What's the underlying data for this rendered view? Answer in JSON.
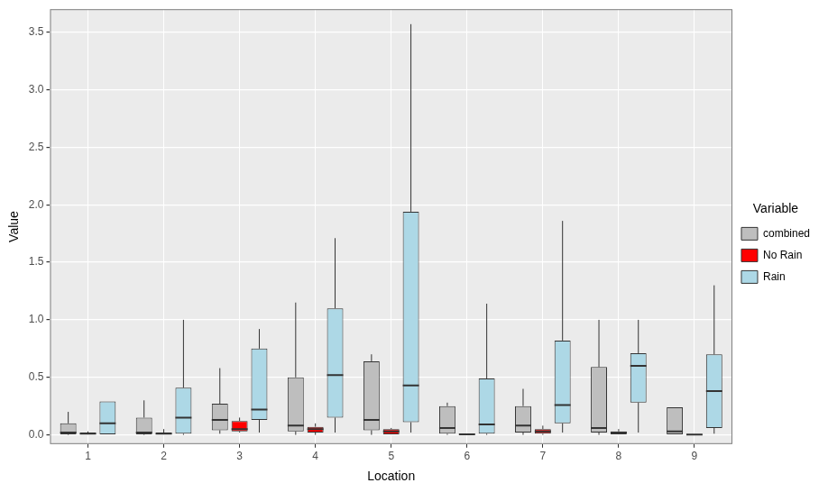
{
  "chart_data": {
    "type": "boxplot",
    "x_label": "Location",
    "y_label": "Value",
    "legend_title": "Variable",
    "legend": "right",
    "grid": true,
    "categories": [
      "1",
      "2",
      "3",
      "4",
      "5",
      "6",
      "7",
      "8",
      "9"
    ],
    "ylim": [
      -0.08,
      3.7
    ],
    "yticks": [
      {
        "value": 0,
        "label": "0.0"
      },
      0.5,
      {
        "value": 1,
        "label": "1.0"
      },
      1.5,
      {
        "value": 2,
        "label": "2.0"
      },
      2.5,
      {
        "value": 3,
        "label": "3.0"
      },
      3.5
    ],
    "series": [
      {
        "name": "combined",
        "color": "#bebebe",
        "values": [
          {
            "min": 0,
            "q1": 0.005,
            "median": 0.02,
            "q3": 0.1,
            "max": 0.2
          },
          {
            "min": 0,
            "q1": 0.005,
            "median": 0.02,
            "q3": 0.15,
            "max": 0.3
          },
          {
            "min": 0.01,
            "q1": 0.04,
            "median": 0.13,
            "q3": 0.27,
            "max": 0.58
          },
          {
            "min": 0,
            "q1": 0.03,
            "median": 0.08,
            "q3": 0.5,
            "max": 1.15
          },
          {
            "min": 0,
            "q1": 0.04,
            "median": 0.13,
            "q3": 0.64,
            "max": 0.7
          },
          {
            "min": 0,
            "q1": 0.01,
            "median": 0.06,
            "q3": 0.25,
            "max": 0.28
          },
          {
            "min": 0,
            "q1": 0.02,
            "median": 0.08,
            "q3": 0.25,
            "max": 0.4
          },
          {
            "min": 0,
            "q1": 0.02,
            "median": 0.06,
            "q3": 0.59,
            "max": 1.0
          },
          {
            "min": 0,
            "q1": 0,
            "median": 0.03,
            "q3": 0.24,
            "max": 0.24
          }
        ]
      },
      {
        "name": "No Rain",
        "color": "#ff0000",
        "values": [
          {
            "min": 0,
            "q1": 0,
            "median": 0.01,
            "q3": 0.02,
            "max": 0.03
          },
          {
            "min": 0,
            "q1": 0,
            "median": 0.01,
            "q3": 0.02,
            "max": 0.05
          },
          {
            "min": 0.02,
            "q1": 0.03,
            "median": 0.05,
            "q3": 0.12,
            "max": 0.15
          },
          {
            "min": 0,
            "q1": 0.02,
            "median": 0.05,
            "q3": 0.07,
            "max": 0.1
          },
          {
            "min": 0,
            "q1": 0,
            "median": 0.03,
            "q3": 0.05,
            "max": 0.06
          },
          {
            "min": 0,
            "q1": 0,
            "median": 0.005,
            "q3": 0.01,
            "max": 0.01
          },
          {
            "min": 0,
            "q1": 0.01,
            "median": 0.03,
            "q3": 0.05,
            "max": 0.08
          },
          {
            "min": 0,
            "q1": 0,
            "median": 0.02,
            "q3": 0.03,
            "max": 0.05
          },
          {
            "min": 0,
            "q1": 0,
            "median": 0.003,
            "q3": 0.005,
            "max": 0.005
          }
        ]
      },
      {
        "name": "Rain",
        "color": "#add8e6",
        "values": [
          {
            "min": 0,
            "q1": 0,
            "median": 0.1,
            "q3": 0.29,
            "max": 0.29
          },
          {
            "min": 0,
            "q1": 0.01,
            "median": 0.15,
            "q3": 0.41,
            "max": 1.0
          },
          {
            "min": 0.02,
            "q1": 0.13,
            "median": 0.22,
            "q3": 0.75,
            "max": 0.92
          },
          {
            "min": 0.02,
            "q1": 0.15,
            "median": 0.52,
            "q3": 1.1,
            "max": 1.71
          },
          {
            "min": 0.02,
            "q1": 0.11,
            "median": 0.43,
            "q3": 1.94,
            "max": 3.57
          },
          {
            "min": 0,
            "q1": 0.01,
            "median": 0.09,
            "q3": 0.49,
            "max": 1.14
          },
          {
            "min": 0.02,
            "q1": 0.1,
            "median": 0.26,
            "q3": 0.82,
            "max": 1.86
          },
          {
            "min": 0.02,
            "q1": 0.28,
            "median": 0.6,
            "q3": 0.71,
            "max": 1.0
          },
          {
            "min": 0.01,
            "q1": 0.06,
            "median": 0.38,
            "q3": 0.7,
            "max": 1.3
          }
        ]
      }
    ]
  }
}
